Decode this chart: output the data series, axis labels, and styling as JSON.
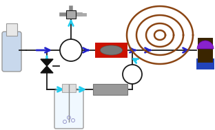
{
  "bg_color": "#ffffff",
  "line_color": "#1a1a1a",
  "blue_arrow": "#2222cc",
  "cyan_arrow": "#22ccee",
  "figw": 3.12,
  "figh": 1.89
}
